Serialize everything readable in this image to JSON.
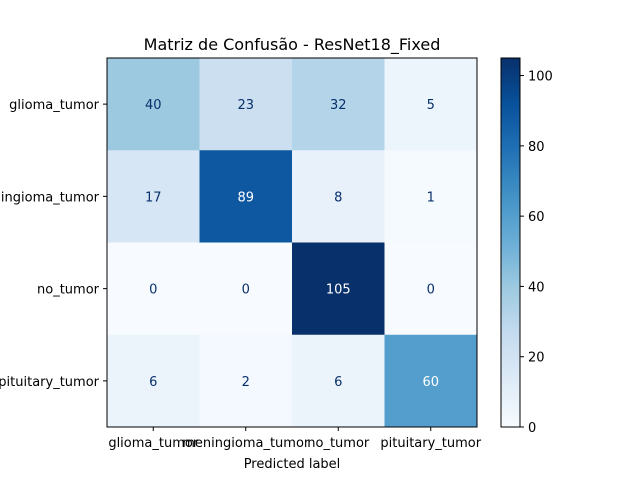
{
  "chart_data": {
    "type": "heatmap",
    "title": "Matriz de Confusão - ResNet18_Fixed",
    "xlabel": "Predicted label",
    "ylabel": "",
    "x_categories": [
      "glioma_tumor",
      "meningioma_tumor",
      "no_tumor",
      "pituitary_tumor"
    ],
    "y_categories": [
      "glioma_tumor",
      "meningioma_tumor",
      "no_tumor",
      "pituitary_tumor"
    ],
    "values": [
      [
        40,
        23,
        32,
        5
      ],
      [
        17,
        89,
        8,
        1
      ],
      [
        0,
        0,
        105,
        0
      ],
      [
        6,
        2,
        6,
        60
      ]
    ],
    "colormap": "Blues",
    "vmin": 0,
    "vmax": 105,
    "colorbar_ticks": [
      0,
      20,
      40,
      60,
      80,
      100
    ]
  }
}
